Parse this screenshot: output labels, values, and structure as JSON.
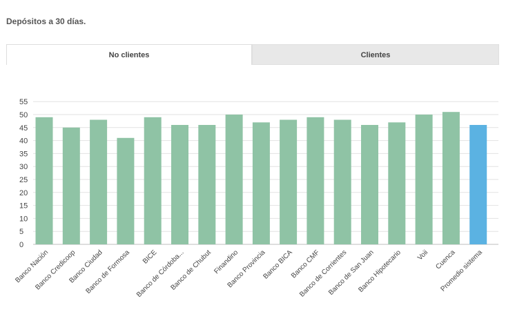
{
  "header": {
    "title": "Depósitos a 30 días."
  },
  "tabs": [
    {
      "label": "No clientes",
      "active": true
    },
    {
      "label": "Clientes",
      "active": false
    }
  ],
  "colors": {
    "bar": "#8fc3a5",
    "highlight": "#5bb2e2",
    "grid": "#e2e2e2",
    "text": "#444444"
  },
  "chart_data": {
    "type": "bar",
    "title": "",
    "xlabel": "",
    "ylabel": "",
    "ylim": [
      0,
      55
    ],
    "yticks": [
      0,
      5,
      10,
      15,
      20,
      25,
      30,
      35,
      40,
      45,
      50,
      55
    ],
    "grid": true,
    "categories": [
      "Banco Nación",
      "Banco Credicoop",
      "Banco Ciudad",
      "Banco de Formosa",
      "BICE",
      "Banco de Córdoba...",
      "Banco de Chubut",
      "Finandino",
      "Banco Provincia",
      "Banco BICA",
      "Banco CMF",
      "Banco de Corrientes",
      "Banco de San Juan",
      "Banco Hipotecario",
      "Voii",
      "Cuenca",
      "Promedio sistema"
    ],
    "values": [
      49,
      45,
      48,
      41,
      49,
      46,
      46,
      50,
      47,
      48,
      49,
      48,
      46,
      47,
      50,
      51,
      46
    ],
    "highlight_category": "Promedio sistema"
  }
}
